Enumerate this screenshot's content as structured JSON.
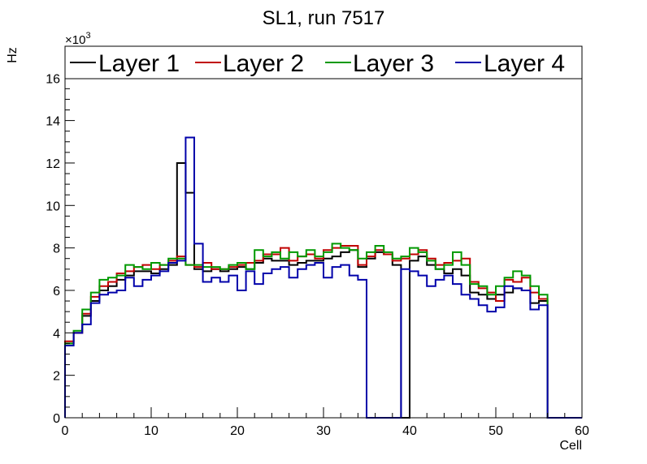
{
  "chart_data": {
    "type": "line",
    "style": "step-histogram",
    "title": "SL1, run 7517",
    "xlabel": "Cell",
    "ylabel": "Hz",
    "y_multiplier_label": "×10³",
    "y_multiplier_base": "×10",
    "y_multiplier_exp": "3",
    "xlim": [
      0,
      60
    ],
    "ylim": [
      0,
      17.5
    ],
    "x_ticks": [
      0,
      10,
      20,
      30,
      40,
      50,
      60
    ],
    "x_tick_labels": [
      "0",
      "10",
      "20",
      "30",
      "40",
      "50",
      "60"
    ],
    "y_ticks": [
      0,
      2,
      4,
      6,
      8,
      10,
      12,
      14,
      16
    ],
    "y_tick_labels": [
      "0",
      "2",
      "4",
      "6",
      "8",
      "10",
      "12",
      "14",
      "16"
    ],
    "bin_edges_start": 0,
    "bin_width": 1,
    "legend_position": "top",
    "series": [
      {
        "name": "Layer 1",
        "color": "#000000",
        "values": [
          3.5,
          4.0,
          4.8,
          5.5,
          6.0,
          6.2,
          6.5,
          6.7,
          6.9,
          6.9,
          6.8,
          7.0,
          7.2,
          12.0,
          10.6,
          7.0,
          6.9,
          7.0,
          6.9,
          7.0,
          7.1,
          7.0,
          7.3,
          7.5,
          7.4,
          7.4,
          7.2,
          7.3,
          7.4,
          7.4,
          7.5,
          7.6,
          7.8,
          7.9,
          7.1,
          7.5,
          7.8,
          7.7,
          7.2,
          0.0,
          7.4,
          7.6,
          7.2,
          7.0,
          6.8,
          7.0,
          6.7,
          5.9,
          5.8,
          5.6,
          5.8,
          5.9,
          6.1,
          6.0,
          5.4,
          5.5,
          0.0,
          0.0,
          0.0,
          0.0
        ]
      },
      {
        "name": "Layer 2",
        "color": "#c00000",
        "values": [
          3.6,
          4.0,
          4.9,
          5.7,
          6.2,
          6.4,
          6.8,
          6.9,
          7.1,
          7.2,
          7.0,
          7.2,
          7.4,
          7.6,
          7.2,
          7.1,
          7.3,
          7.0,
          7.0,
          7.1,
          7.2,
          7.3,
          7.4,
          7.7,
          7.7,
          8.0,
          7.4,
          7.6,
          7.7,
          7.5,
          7.9,
          8.0,
          8.1,
          8.1,
          7.2,
          7.6,
          7.9,
          7.7,
          7.4,
          7.5,
          7.7,
          7.9,
          7.5,
          7.2,
          7.3,
          7.4,
          7.5,
          6.4,
          6.1,
          5.9,
          5.5,
          6.5,
          6.4,
          6.6,
          5.9,
          5.6,
          0.0,
          0.0,
          0.0,
          0.0
        ]
      },
      {
        "name": "Layer 3",
        "color": "#009900",
        "values": [
          3.5,
          4.1,
          5.1,
          5.9,
          6.5,
          6.6,
          6.7,
          7.2,
          7.1,
          7.0,
          7.3,
          7.2,
          7.5,
          7.5,
          7.2,
          7.2,
          7.1,
          7.1,
          7.0,
          7.2,
          7.3,
          7.0,
          7.9,
          7.6,
          7.8,
          7.5,
          7.8,
          7.6,
          7.9,
          7.6,
          7.8,
          8.2,
          8.0,
          7.9,
          7.5,
          7.8,
          8.1,
          7.8,
          7.5,
          7.6,
          8.0,
          7.8,
          7.4,
          7.0,
          7.2,
          7.8,
          7.2,
          6.3,
          6.2,
          5.8,
          6.2,
          6.6,
          6.9,
          6.7,
          6.2,
          5.8,
          0.0,
          0.0,
          0.0,
          0.0
        ]
      },
      {
        "name": "Layer 4",
        "color": "#0000aa",
        "values": [
          3.4,
          4.0,
          4.4,
          5.4,
          5.8,
          5.9,
          6.0,
          6.6,
          6.2,
          6.5,
          6.7,
          6.9,
          7.3,
          7.4,
          13.2,
          8.2,
          6.4,
          6.6,
          6.4,
          6.7,
          6.0,
          6.9,
          6.3,
          6.8,
          7.0,
          7.1,
          6.6,
          7.0,
          7.2,
          7.3,
          6.6,
          7.1,
          7.2,
          6.7,
          6.5,
          0.0,
          0.0,
          0.0,
          0.0,
          7.0,
          6.9,
          6.7,
          6.2,
          6.5,
          6.7,
          6.3,
          5.8,
          5.6,
          5.3,
          5.0,
          5.2,
          6.2,
          6.1,
          6.0,
          5.1,
          5.3,
          0.0,
          0.0,
          0.0,
          0.0
        ]
      }
    ]
  }
}
